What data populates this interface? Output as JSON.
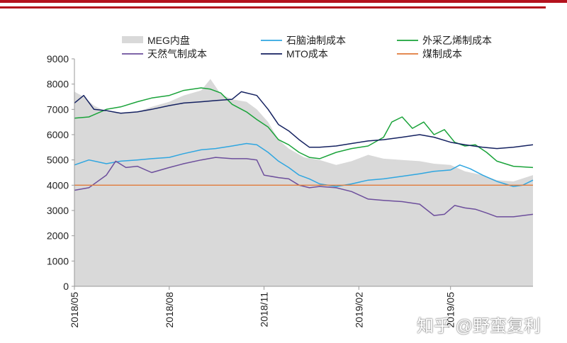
{
  "colors": {
    "brand_red": "#b4121d",
    "meg_fill": "#d9d9d9",
    "naphtha": "#2fa6e0",
    "ethylene": "#1aa33a",
    "natural_gas": "#6d4f9c",
    "mto": "#142160",
    "coal": "#e07a3a"
  },
  "watermark": "知乎 @野蛮复利",
  "chart_data": {
    "type": "line",
    "title": "",
    "xlabel": "",
    "ylabel": "",
    "ylim": [
      0,
      9000
    ],
    "yticks": [
      0,
      1000,
      2000,
      3000,
      4000,
      5000,
      6000,
      7000,
      8000,
      9000
    ],
    "xrange": [
      "2018-05",
      "2019-07-20"
    ],
    "xticks": [
      "2018/05",
      "2018/08",
      "2018/11",
      "2019/02",
      "2019/05"
    ],
    "grid": false,
    "legend_position": "top",
    "series": [
      {
        "name": "MEG内盘",
        "kind": "area",
        "color": "#d9d9d9",
        "points": [
          [
            "2018-05-01",
            7700
          ],
          [
            "2018-05-10",
            7500
          ],
          [
            "2018-05-20",
            7150
          ],
          [
            "2018-06-01",
            6900
          ],
          [
            "2018-06-15",
            6850
          ],
          [
            "2018-07-01",
            6900
          ],
          [
            "2018-07-15",
            7100
          ],
          [
            "2018-08-01",
            7300
          ],
          [
            "2018-08-15",
            7550
          ],
          [
            "2018-09-01",
            7750
          ],
          [
            "2018-09-10",
            8200
          ],
          [
            "2018-09-20",
            7600
          ],
          [
            "2018-10-01",
            7400
          ],
          [
            "2018-10-15",
            7300
          ],
          [
            "2018-10-25",
            7000
          ],
          [
            "2018-11-05",
            6500
          ],
          [
            "2018-11-15",
            5800
          ],
          [
            "2018-11-25",
            5450
          ],
          [
            "2018-12-10",
            5100
          ],
          [
            "2018-12-25",
            5000
          ],
          [
            "2019-01-10",
            4800
          ],
          [
            "2019-01-25",
            4950
          ],
          [
            "2019-02-10",
            5200
          ],
          [
            "2019-02-25",
            5050
          ],
          [
            "2019-03-15",
            5000
          ],
          [
            "2019-04-01",
            4950
          ],
          [
            "2019-04-15",
            4850
          ],
          [
            "2019-05-01",
            4800
          ],
          [
            "2019-05-15",
            4550
          ],
          [
            "2019-06-01",
            4400
          ],
          [
            "2019-06-15",
            4200
          ],
          [
            "2019-07-01",
            4150
          ],
          [
            "2019-07-20",
            4400
          ]
        ]
      },
      {
        "name": "石脑油制成本",
        "kind": "line",
        "color": "#2fa6e0",
        "points": [
          [
            "2018-05-01",
            4800
          ],
          [
            "2018-05-15",
            5000
          ],
          [
            "2018-06-01",
            4850
          ],
          [
            "2018-06-15",
            4950
          ],
          [
            "2018-07-01",
            5000
          ],
          [
            "2018-07-15",
            5050
          ],
          [
            "2018-08-01",
            5100
          ],
          [
            "2018-08-15",
            5250
          ],
          [
            "2018-09-01",
            5400
          ],
          [
            "2018-09-15",
            5450
          ],
          [
            "2018-10-01",
            5550
          ],
          [
            "2018-10-15",
            5650
          ],
          [
            "2018-10-25",
            5600
          ],
          [
            "2018-11-05",
            5300
          ],
          [
            "2018-11-15",
            4950
          ],
          [
            "2018-11-25",
            4700
          ],
          [
            "2018-12-05",
            4400
          ],
          [
            "2018-12-15",
            4250
          ],
          [
            "2018-12-25",
            4050
          ],
          [
            "2019-01-10",
            3950
          ],
          [
            "2019-01-25",
            4050
          ],
          [
            "2019-02-10",
            4200
          ],
          [
            "2019-02-25",
            4250
          ],
          [
            "2019-03-15",
            4350
          ],
          [
            "2019-04-01",
            4450
          ],
          [
            "2019-04-15",
            4550
          ],
          [
            "2019-05-01",
            4600
          ],
          [
            "2019-05-10",
            4800
          ],
          [
            "2019-05-20",
            4650
          ],
          [
            "2019-06-01",
            4400
          ],
          [
            "2019-06-15",
            4150
          ],
          [
            "2019-07-01",
            3950
          ],
          [
            "2019-07-10",
            4000
          ],
          [
            "2019-07-20",
            4200
          ]
        ]
      },
      {
        "name": "外采乙烯制成本",
        "kind": "line",
        "color": "#1aa33a",
        "points": [
          [
            "2018-05-01",
            6650
          ],
          [
            "2018-05-15",
            6700
          ],
          [
            "2018-06-01",
            7000
          ],
          [
            "2018-06-15",
            7100
          ],
          [
            "2018-07-01",
            7300
          ],
          [
            "2018-07-15",
            7450
          ],
          [
            "2018-08-01",
            7550
          ],
          [
            "2018-08-15",
            7750
          ],
          [
            "2018-09-01",
            7850
          ],
          [
            "2018-09-10",
            7800
          ],
          [
            "2018-09-20",
            7650
          ],
          [
            "2018-10-01",
            7200
          ],
          [
            "2018-10-15",
            6900
          ],
          [
            "2018-10-25",
            6600
          ],
          [
            "2018-11-05",
            6300
          ],
          [
            "2018-11-15",
            5800
          ],
          [
            "2018-11-25",
            5600
          ],
          [
            "2018-12-05",
            5300
          ],
          [
            "2018-12-15",
            5100
          ],
          [
            "2018-12-25",
            5050
          ],
          [
            "2019-01-10",
            5300
          ],
          [
            "2019-01-25",
            5450
          ],
          [
            "2019-02-10",
            5550
          ],
          [
            "2019-02-25",
            5900
          ],
          [
            "2019-03-05",
            6500
          ],
          [
            "2019-03-15",
            6700
          ],
          [
            "2019-03-25",
            6250
          ],
          [
            "2019-04-05",
            6500
          ],
          [
            "2019-04-15",
            6000
          ],
          [
            "2019-04-25",
            6200
          ],
          [
            "2019-05-05",
            5700
          ],
          [
            "2019-05-15",
            5550
          ],
          [
            "2019-05-25",
            5600
          ],
          [
            "2019-06-05",
            5300
          ],
          [
            "2019-06-15",
            4950
          ],
          [
            "2019-07-01",
            4750
          ],
          [
            "2019-07-20",
            4700
          ]
        ]
      },
      {
        "name": "天然气制成本",
        "kind": "line",
        "color": "#6d4f9c",
        "points": [
          [
            "2018-05-01",
            3800
          ],
          [
            "2018-05-15",
            3900
          ],
          [
            "2018-06-01",
            4400
          ],
          [
            "2018-06-10",
            4950
          ],
          [
            "2018-06-20",
            4700
          ],
          [
            "2018-07-01",
            4750
          ],
          [
            "2018-07-15",
            4500
          ],
          [
            "2018-08-01",
            4700
          ],
          [
            "2018-08-15",
            4850
          ],
          [
            "2018-09-01",
            5000
          ],
          [
            "2018-09-15",
            5100
          ],
          [
            "2018-10-01",
            5050
          ],
          [
            "2018-10-15",
            5050
          ],
          [
            "2018-10-25",
            5000
          ],
          [
            "2018-11-01",
            4400
          ],
          [
            "2018-11-15",
            4300
          ],
          [
            "2018-11-25",
            4250
          ],
          [
            "2018-12-05",
            4000
          ],
          [
            "2018-12-15",
            3900
          ],
          [
            "2018-12-25",
            3950
          ],
          [
            "2019-01-10",
            3900
          ],
          [
            "2019-01-25",
            3750
          ],
          [
            "2019-02-10",
            3450
          ],
          [
            "2019-02-25",
            3400
          ],
          [
            "2019-03-15",
            3350
          ],
          [
            "2019-04-01",
            3250
          ],
          [
            "2019-04-15",
            2800
          ],
          [
            "2019-04-25",
            2850
          ],
          [
            "2019-05-05",
            3200
          ],
          [
            "2019-05-15",
            3100
          ],
          [
            "2019-05-25",
            3050
          ],
          [
            "2019-06-05",
            2900
          ],
          [
            "2019-06-15",
            2750
          ],
          [
            "2019-07-01",
            2750
          ],
          [
            "2019-07-20",
            2850
          ]
        ]
      },
      {
        "name": "MTO成本",
        "kind": "line",
        "color": "#142160",
        "points": [
          [
            "2018-05-01",
            7250
          ],
          [
            "2018-05-10",
            7550
          ],
          [
            "2018-05-20",
            7000
          ],
          [
            "2018-06-01",
            6950
          ],
          [
            "2018-06-15",
            6850
          ],
          [
            "2018-07-01",
            6900
          ],
          [
            "2018-07-15",
            7000
          ],
          [
            "2018-08-01",
            7150
          ],
          [
            "2018-08-15",
            7250
          ],
          [
            "2018-09-01",
            7300
          ],
          [
            "2018-09-15",
            7350
          ],
          [
            "2018-10-01",
            7400
          ],
          [
            "2018-10-10",
            7700
          ],
          [
            "2018-10-25",
            7550
          ],
          [
            "2018-11-05",
            7000
          ],
          [
            "2018-11-15",
            6400
          ],
          [
            "2018-11-25",
            6150
          ],
          [
            "2018-12-05",
            5800
          ],
          [
            "2018-12-15",
            5500
          ],
          [
            "2018-12-25",
            5500
          ],
          [
            "2019-01-10",
            5550
          ],
          [
            "2019-01-25",
            5650
          ],
          [
            "2019-02-10",
            5750
          ],
          [
            "2019-02-25",
            5800
          ],
          [
            "2019-03-15",
            5900
          ],
          [
            "2019-04-01",
            6000
          ],
          [
            "2019-04-15",
            5900
          ],
          [
            "2019-05-01",
            5700
          ],
          [
            "2019-05-15",
            5600
          ],
          [
            "2019-06-01",
            5500
          ],
          [
            "2019-06-15",
            5450
          ],
          [
            "2019-07-01",
            5500
          ],
          [
            "2019-07-20",
            5600
          ]
        ]
      },
      {
        "name": "煤制成本",
        "kind": "line",
        "color": "#e07a3a",
        "points": [
          [
            "2018-05-01",
            4000
          ],
          [
            "2019-07-20",
            4000
          ]
        ]
      }
    ]
  }
}
